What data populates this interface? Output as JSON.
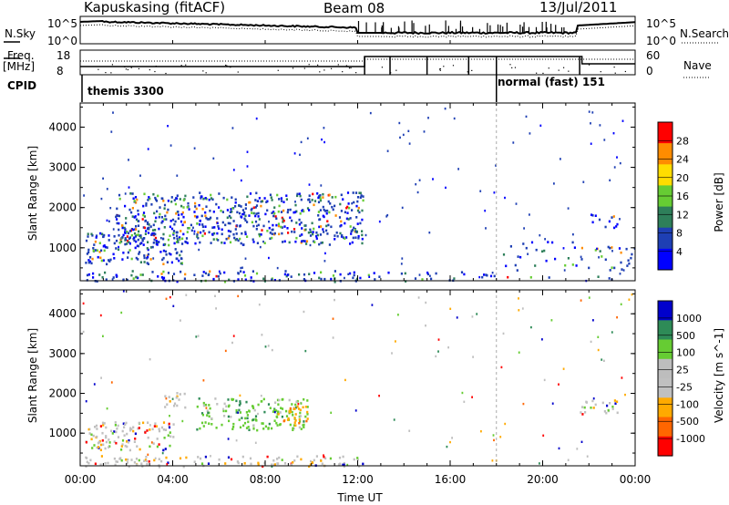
{
  "header": {
    "radar": "Kapuskasing (fitACF)",
    "beam": "Beam 08",
    "date": "13/Jul/2011"
  },
  "summary_panel": {
    "left_top_label": "N.Sky",
    "left_mid_label": "Freq.",
    "left_mid_unit": "[MHz]",
    "left_bot_label": "CPID",
    "right_top_label": "N.Search",
    "right_mid_label": "Nave",
    "ticks_left_top": [
      "10^5",
      "10^0"
    ],
    "ticks_right_top": [
      "10^5",
      "10^0"
    ],
    "ticks_freq": [
      "18",
      "8"
    ],
    "ticks_nave": [
      "60",
      "0"
    ],
    "cpid_segments": [
      {
        "label": "themis 3300",
        "start_hour": 0,
        "end_hour": 18
      },
      {
        "label": "normal (fast) 151",
        "start_hour": 18,
        "end_hour": 24
      }
    ]
  },
  "chart_data": [
    {
      "type": "heatmap",
      "title": "",
      "xlabel": "",
      "ylabel": "Slant Range [km]",
      "xlim": [
        0,
        24
      ],
      "ylim": [
        180,
        4600
      ],
      "yticks": [
        1000,
        2000,
        3000,
        4000
      ],
      "colorbar": {
        "label": "Power [dB]",
        "ticks": [
          "28",
          "24",
          "20",
          "16",
          "12",
          "8",
          "4"
        ],
        "range": [
          0,
          30
        ],
        "colors": [
          "#0000ff",
          "#1e3fb4",
          "#2e7f5a",
          "#66cc33",
          "#ffdd00",
          "#ff8c00",
          "#ff0000"
        ]
      },
      "scatter_regions": [
        {
          "x": [
            0.2,
            12.3
          ],
          "y": [
            180,
            450
          ],
          "intensity": "high"
        },
        {
          "x": [
            12.3,
            18.0
          ],
          "y": [
            180,
            420
          ],
          "intensity": "medium"
        },
        {
          "x": [
            0.2,
            4.5
          ],
          "y": [
            600,
            1400
          ],
          "intensity": "high"
        },
        {
          "x": [
            1.5,
            12.2
          ],
          "y": [
            1100,
            2400
          ],
          "intensity": "high"
        },
        {
          "x": [
            18.0,
            24.0
          ],
          "y": [
            180,
            1200
          ],
          "intensity": "low"
        },
        {
          "x": [
            21.6,
            23.2
          ],
          "y": [
            1500,
            1850
          ],
          "intensity": "medium"
        }
      ]
    },
    {
      "type": "heatmap",
      "title": "",
      "xlabel": "Time UT",
      "ylabel": "Slant Range [km]",
      "xlim": [
        0,
        24
      ],
      "ylim": [
        180,
        4600
      ],
      "yticks": [
        1000,
        2000,
        3000,
        4000
      ],
      "xticks": [
        "00:00",
        "04:00",
        "08:00",
        "12:00",
        "16:00",
        "20:00",
        "00:00"
      ],
      "colorbar": {
        "label": "Velocity [m s^-1]",
        "ticks": [
          "1000",
          "500",
          "100",
          "25",
          "-25",
          "-100",
          "-500",
          "-1000"
        ],
        "range": [
          -1000,
          1000
        ],
        "colors": [
          "#ff0000",
          "#ff6600",
          "#ffaa00",
          "#c0c0c0",
          "#bdbdbd",
          "#66cc33",
          "#2e8b57",
          "#0000cc"
        ]
      },
      "scatter_regions": [
        {
          "x": [
            0.2,
            12.3
          ],
          "y": [
            180,
            450
          ],
          "intensity": "mixed"
        },
        {
          "x": [
            0.2,
            4.0
          ],
          "y": [
            600,
            1300
          ],
          "intensity": "mixed"
        },
        {
          "x": [
            3.6,
            4.6
          ],
          "y": [
            1650,
            2050
          ],
          "intensity": "grey"
        },
        {
          "x": [
            5.0,
            9.8
          ],
          "y": [
            1100,
            1900
          ],
          "intensity": "green"
        },
        {
          "x": [
            8.5,
            9.8
          ],
          "y": [
            1200,
            1700
          ],
          "intensity": "orange"
        },
        {
          "x": [
            21.6,
            23.2
          ],
          "y": [
            1500,
            1850
          ],
          "intensity": "mixed"
        }
      ]
    }
  ]
}
